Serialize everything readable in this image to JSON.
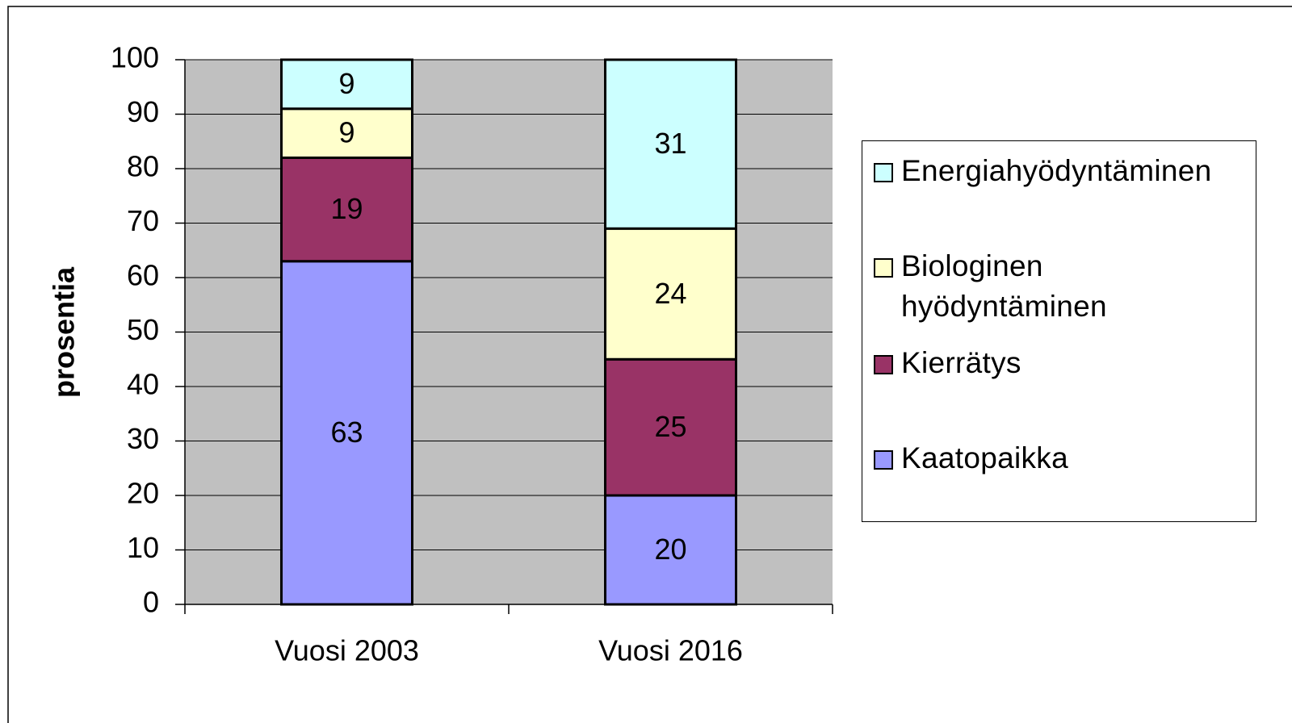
{
  "chart_data": {
    "type": "stacked_bar",
    "categories": [
      "Vuosi 2003",
      "Vuosi 2016"
    ],
    "series": [
      {
        "name": "Kaatopaikka",
        "color": "#9999ff",
        "values": [
          63,
          20
        ]
      },
      {
        "name": "Kierrätys",
        "color": "#993366",
        "values": [
          19,
          25
        ]
      },
      {
        "name": "Biologinen hyödyntäminen",
        "color": "#ffffcc",
        "values": [
          9,
          24
        ]
      },
      {
        "name": "Energiahyödyntäminen",
        "color": "#ccffff",
        "values": [
          9,
          31
        ]
      }
    ],
    "y_label": "prosentia",
    "ylim": [
      0,
      100
    ],
    "yticks": [
      0,
      10,
      20,
      30,
      40,
      50,
      60,
      70,
      80,
      90,
      100
    ],
    "grid": true,
    "legend": "right",
    "plot_background": "#c0c0c0"
  }
}
